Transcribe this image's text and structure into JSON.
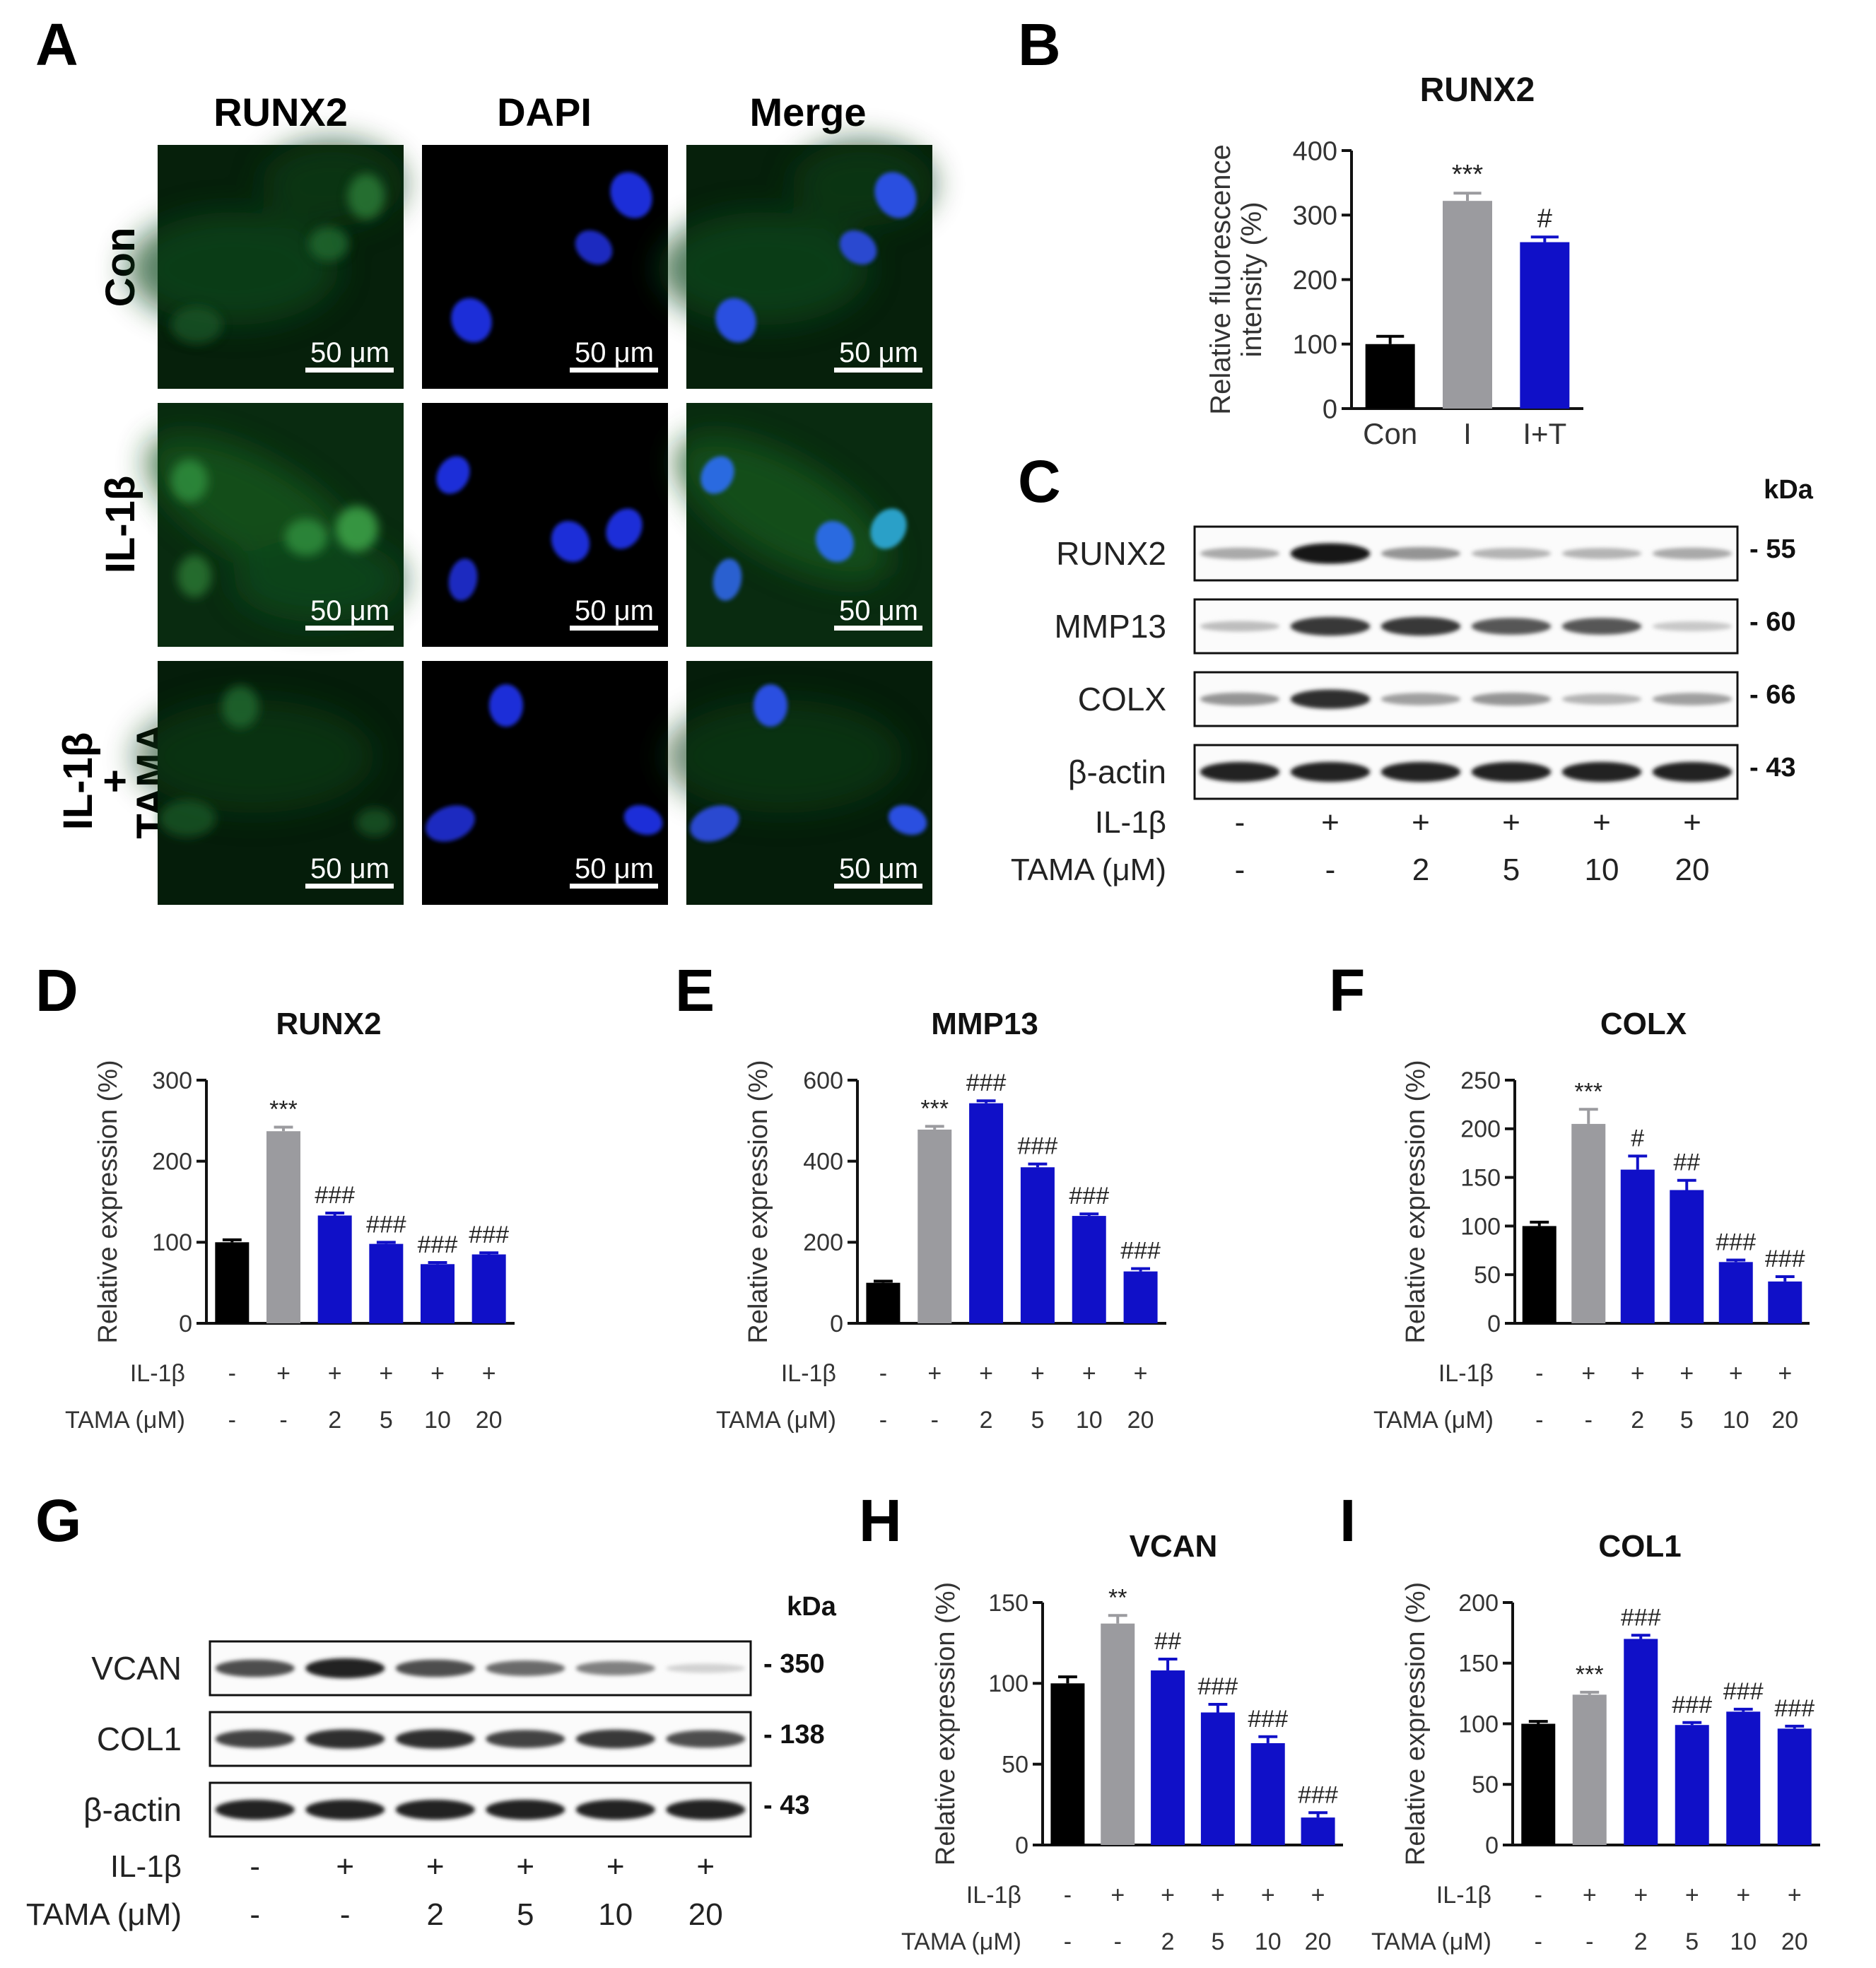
{
  "panel_letters": [
    "A",
    "B",
    "C",
    "D",
    "E",
    "F",
    "G",
    "H",
    "I"
  ],
  "panel_a": {
    "column_headers": [
      "RUNX2",
      "DAPI",
      "Merge"
    ],
    "row_labels": [
      [
        "Con"
      ],
      [
        "IL-1β"
      ],
      [
        "IL-1β",
        "+",
        "TAMA"
      ]
    ],
    "scale_bar_label": "50 μm",
    "colors": {
      "green_stain": "#1f6b2a",
      "blue_stain": "#1a2fd8",
      "background": "#000000"
    }
  },
  "chart_data": [
    {
      "id": "B",
      "type": "bar",
      "title": "RUNX2",
      "ylabel": [
        "Relative fluorescence",
        "intensity (%)"
      ],
      "ylim": [
        0,
        400
      ],
      "yticks": [
        0,
        100,
        200,
        300,
        400
      ],
      "categories": [
        "Con",
        "I",
        "I+T"
      ],
      "values": [
        100,
        322,
        258
      ],
      "errors": [
        12,
        12,
        8
      ],
      "colors": [
        "#000000",
        "#9b9b9f",
        "#1010c8"
      ],
      "annotations": [
        "",
        "***",
        "#"
      ]
    },
    {
      "id": "D",
      "type": "bar",
      "title": "RUNX2",
      "ylabel": "Relative expression (%)",
      "ylim": [
        0,
        300
      ],
      "yticks": [
        0,
        100,
        200,
        300
      ],
      "values": [
        100,
        237,
        133,
        98,
        73,
        85
      ],
      "errors": [
        3,
        5,
        3,
        2,
        2,
        2
      ],
      "colors": [
        "#000000",
        "#9b9b9f",
        "#1010c8",
        "#1010c8",
        "#1010c8",
        "#1010c8"
      ],
      "annotations": [
        "",
        "***",
        "###",
        "###",
        "###",
        "###"
      ],
      "treatments": {
        "row1_label": "IL-1β",
        "row1": [
          "-",
          "+",
          "+",
          "+",
          "+",
          "+"
        ],
        "row2_label": "TAMA (μM)",
        "row2": [
          "-",
          "-",
          "2",
          "5",
          "10",
          "20"
        ]
      }
    },
    {
      "id": "E",
      "type": "bar",
      "title": "MMP13",
      "ylabel": "Relative expression (%)",
      "ylim": [
        0,
        600
      ],
      "yticks": [
        0,
        200,
        400,
        600
      ],
      "values": [
        100,
        478,
        543,
        385,
        265,
        128
      ],
      "errors": [
        4,
        8,
        6,
        8,
        5,
        7
      ],
      "colors": [
        "#000000",
        "#9b9b9f",
        "#1010c8",
        "#1010c8",
        "#1010c8",
        "#1010c8"
      ],
      "annotations": [
        "",
        "***",
        "###",
        "###",
        "###",
        "###"
      ],
      "treatments": {
        "row1_label": "IL-1β",
        "row1": [
          "-",
          "+",
          "+",
          "+",
          "+",
          "+"
        ],
        "row2_label": "TAMA (μM)",
        "row2": [
          "-",
          "-",
          "2",
          "5",
          "10",
          "20"
        ]
      }
    },
    {
      "id": "F",
      "type": "bar",
      "title": "COLX",
      "ylabel": "Relative expression (%)",
      "ylim": [
        0,
        250
      ],
      "yticks": [
        0,
        50,
        100,
        150,
        200,
        250
      ],
      "values": [
        100,
        205,
        158,
        137,
        63,
        43
      ],
      "errors": [
        4,
        15,
        14,
        10,
        2,
        5
      ],
      "colors": [
        "#000000",
        "#9b9b9f",
        "#1010c8",
        "#1010c8",
        "#1010c8",
        "#1010c8"
      ],
      "annotations": [
        "",
        "***",
        "#",
        "##",
        "###",
        "###"
      ],
      "treatments": {
        "row1_label": "IL-1β",
        "row1": [
          "-",
          "+",
          "+",
          "+",
          "+",
          "+"
        ],
        "row2_label": "TAMA (μM)",
        "row2": [
          "-",
          "-",
          "2",
          "5",
          "10",
          "20"
        ]
      }
    },
    {
      "id": "H",
      "type": "bar",
      "title": "VCAN",
      "ylabel": "Relative expression (%)",
      "ylim": [
        0,
        150
      ],
      "yticks": [
        0,
        50,
        100,
        150
      ],
      "values": [
        100,
        137,
        108,
        82,
        63,
        17
      ],
      "errors": [
        4,
        5,
        7,
        5,
        4,
        3
      ],
      "colors": [
        "#000000",
        "#9b9b9f",
        "#1010c8",
        "#1010c8",
        "#1010c8",
        "#1010c8"
      ],
      "annotations": [
        "",
        "**",
        "##",
        "###",
        "###",
        "###"
      ],
      "treatments": {
        "row1_label": "IL-1β",
        "row1": [
          "-",
          "+",
          "+",
          "+",
          "+",
          "+"
        ],
        "row2_label": "TAMA (μM)",
        "row2": [
          "-",
          "-",
          "2",
          "5",
          "10",
          "20"
        ]
      }
    },
    {
      "id": "I",
      "type": "bar",
      "title": "COL1",
      "ylabel": "Relative expression (%)",
      "ylim": [
        0,
        200
      ],
      "yticks": [
        0,
        50,
        100,
        150,
        200
      ],
      "values": [
        100,
        124,
        170,
        99,
        110,
        96
      ],
      "errors": [
        2,
        2,
        3,
        2,
        2,
        2
      ],
      "colors": [
        "#000000",
        "#9b9b9f",
        "#1010c8",
        "#1010c8",
        "#1010c8",
        "#1010c8"
      ],
      "annotations": [
        "",
        "***",
        "###",
        "###",
        "###",
        "###"
      ],
      "treatments": {
        "row1_label": "IL-1β",
        "row1": [
          "-",
          "+",
          "+",
          "+",
          "+",
          "+"
        ],
        "row2_label": "TAMA (μM)",
        "row2": [
          "-",
          "-",
          "2",
          "5",
          "10",
          "20"
        ]
      }
    }
  ],
  "blots": [
    {
      "id": "C",
      "unit": "kDa",
      "rows": [
        {
          "label": "RUNX2",
          "kda": "- 55",
          "intensity": [
            0.25,
            0.95,
            0.35,
            0.2,
            0.2,
            0.25
          ]
        },
        {
          "label": "MMP13",
          "kda": "- 60",
          "intensity": [
            0.15,
            0.8,
            0.8,
            0.65,
            0.65,
            0.1
          ]
        },
        {
          "label": "COLX",
          "kda": "- 66",
          "intensity": [
            0.35,
            0.85,
            0.3,
            0.35,
            0.2,
            0.3
          ]
        },
        {
          "label": "β-actin",
          "kda": "- 43",
          "intensity": [
            0.9,
            0.9,
            0.9,
            0.9,
            0.9,
            0.9
          ]
        }
      ],
      "treatments": {
        "row1_label": "IL-1β",
        "row1": [
          "-",
          "+",
          "+",
          "+",
          "+",
          "+"
        ],
        "row2_label": "TAMA (μM)",
        "row2": [
          "-",
          "-",
          "2",
          "5",
          "10",
          "20"
        ]
      }
    },
    {
      "id": "G",
      "unit": "kDa",
      "rows": [
        {
          "label": "VCAN",
          "kda": "- 350",
          "intensity": [
            0.7,
            0.9,
            0.7,
            0.55,
            0.45,
            0.05
          ]
        },
        {
          "label": "COL1",
          "kda": "- 138",
          "intensity": [
            0.75,
            0.85,
            0.85,
            0.75,
            0.8,
            0.7
          ]
        },
        {
          "label": "β-actin",
          "kda": "- 43",
          "intensity": [
            0.9,
            0.9,
            0.9,
            0.9,
            0.9,
            0.9
          ]
        }
      ],
      "treatments": {
        "row1_label": "IL-1β",
        "row1": [
          "-",
          "+",
          "+",
          "+",
          "+",
          "+"
        ],
        "row2_label": "TAMA (μM)",
        "row2": [
          "-",
          "-",
          "2",
          "5",
          "10",
          "20"
        ]
      }
    }
  ]
}
